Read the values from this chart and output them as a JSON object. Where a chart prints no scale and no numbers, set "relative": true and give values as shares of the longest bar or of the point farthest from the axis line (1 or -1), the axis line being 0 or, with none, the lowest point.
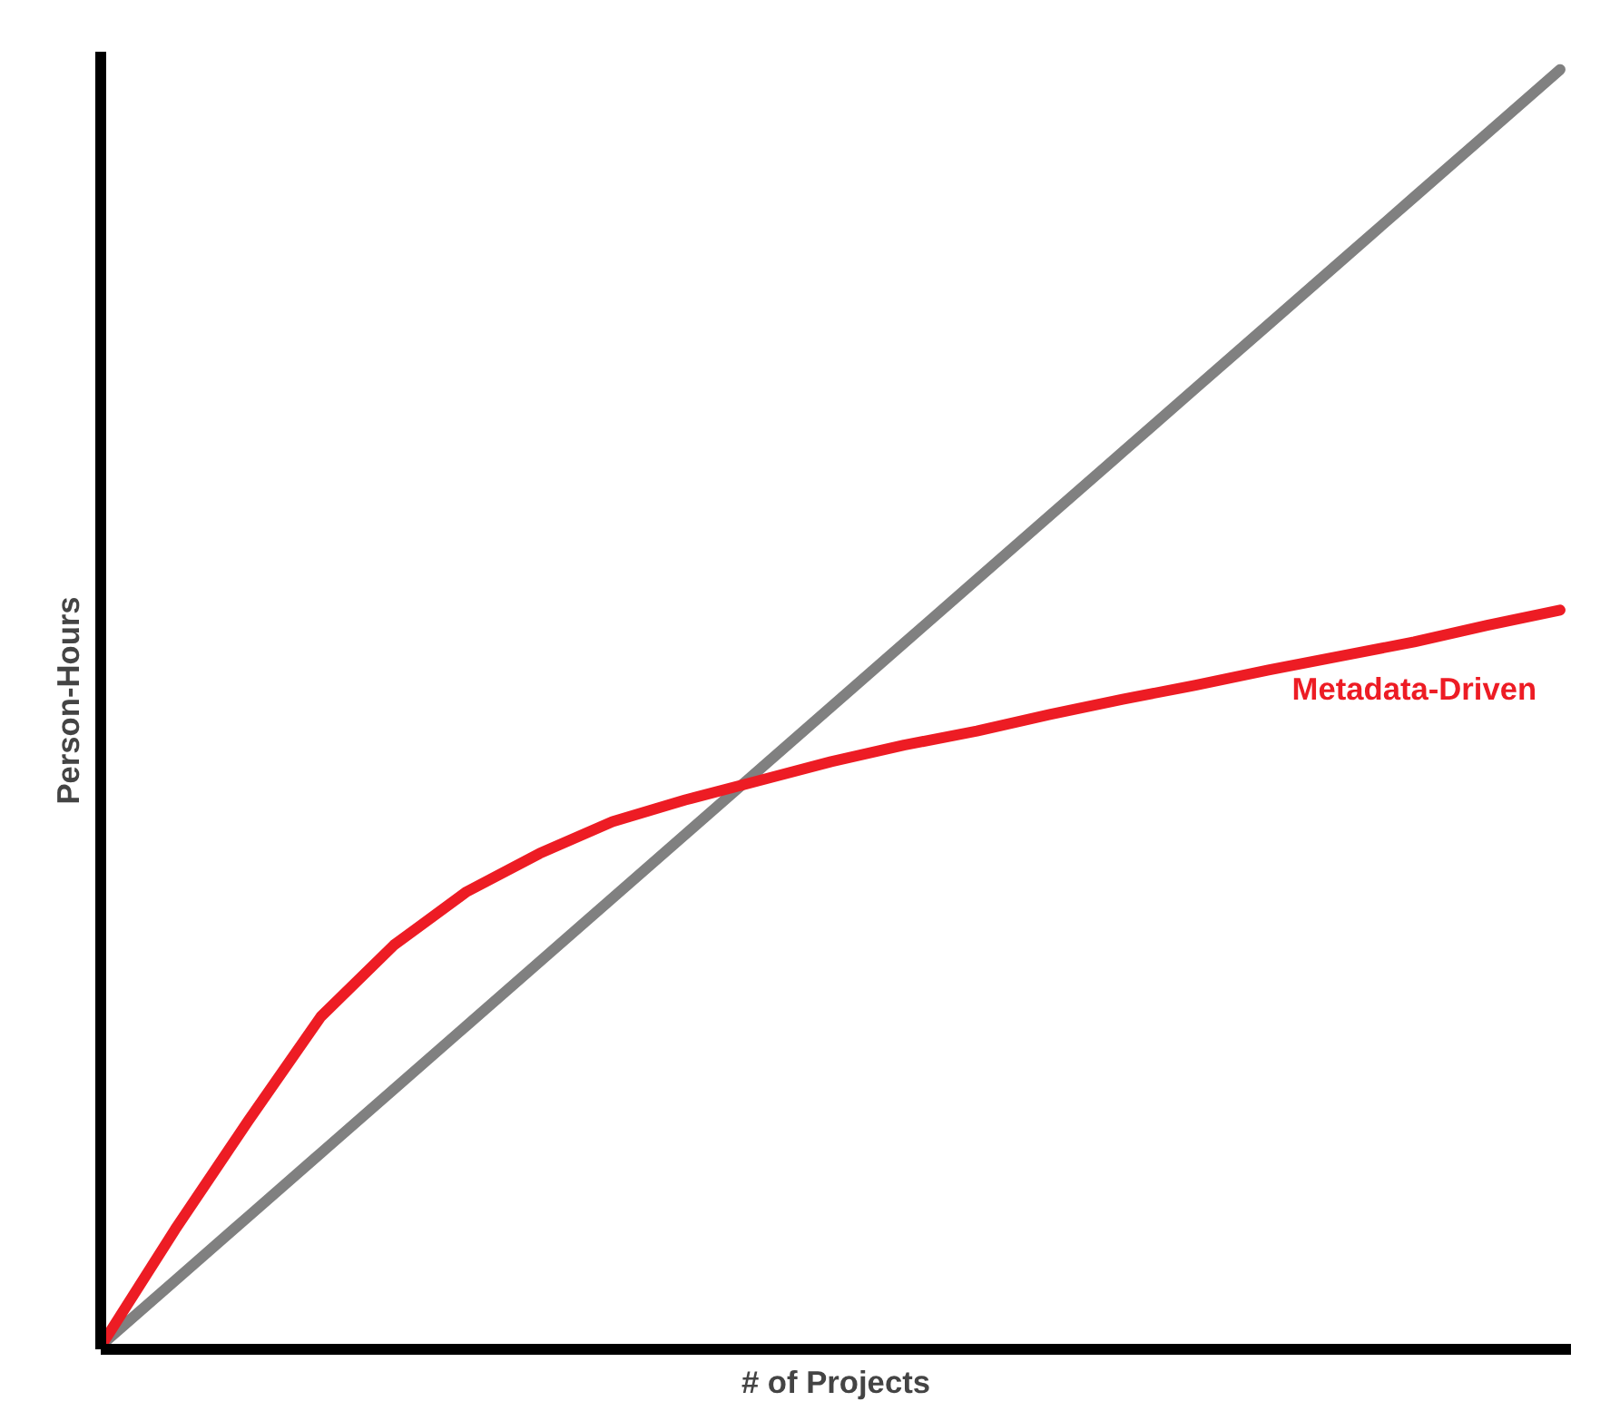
{
  "chart_data": {
    "type": "line",
    "relative": true,
    "xlabel": "# of Projects",
    "ylabel": "Person-Hours",
    "categories": [
      null,
      null,
      null,
      null,
      null,
      null,
      null,
      null,
      null,
      null,
      null,
      null,
      null,
      null,
      null,
      null,
      null,
      null,
      null,
      null,
      null
    ],
    "series": [
      {
        "color": "#808080",
        "values": [
          0,
          0.05,
          0.1,
          0.15,
          0.2,
          0.25,
          0.3,
          0.35,
          0.4,
          0.45,
          0.5,
          0.55,
          0.6,
          0.65,
          0.7,
          0.75,
          0.8,
          0.85,
          0.9,
          0.95,
          1
        ]
      },
      {
        "name": "Metadata-Driven",
        "color": "#ed1c24",
        "values": [
          0,
          0.09,
          0.175,
          0.257,
          0.313,
          0.355,
          0.385,
          0.41,
          0.427,
          0.442,
          0.457,
          0.47,
          0.481,
          0.494,
          0.506,
          0.517,
          0.529,
          0.54,
          0.551,
          0.564,
          0.576
        ]
      }
    ],
    "grid": false,
    "tick_labels": false,
    "line_style": "solid",
    "marker": "none"
  }
}
